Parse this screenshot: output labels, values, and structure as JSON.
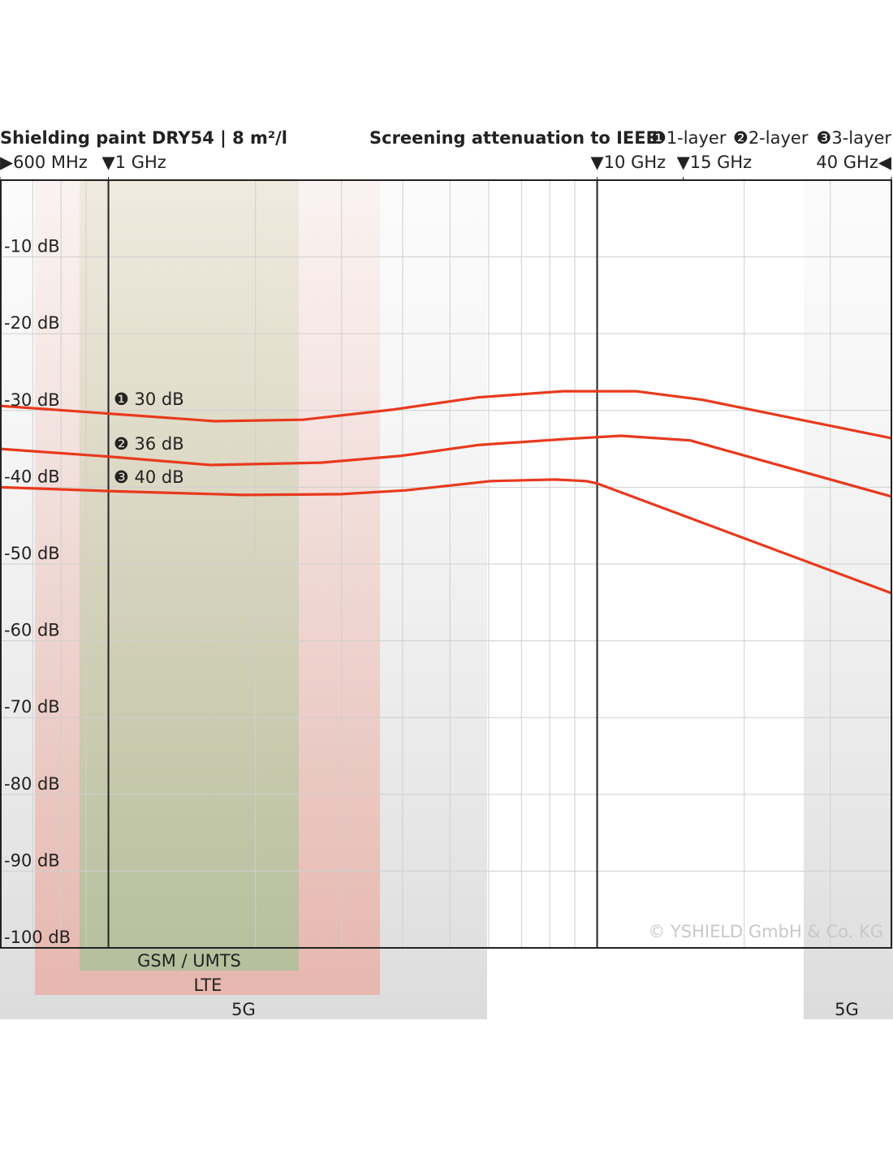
{
  "chart_data": {
    "type": "line",
    "title": "Shielding paint DRY54 | 8 m²/l",
    "subtitle": "Screening attenuation to IEEE",
    "log_x": true,
    "xlim": [
      0.6,
      40
    ],
    "xticks": [
      {
        "value": 0.6,
        "label": "▶600 MHz"
      },
      {
        "value": 1,
        "label": "▼1 GHz"
      },
      {
        "value": 10,
        "label": "▼10 GHz"
      },
      {
        "value": 15,
        "label": "▼15 GHz"
      },
      {
        "value": 40,
        "label": "40 GHz◀"
      }
    ],
    "xgrid": [
      0.7,
      0.8,
      0.9,
      1,
      2,
      3,
      4,
      5,
      6,
      7,
      8,
      9,
      10,
      20,
      30
    ],
    "ylim": [
      -100,
      0
    ],
    "yticks": [
      {
        "value": -10,
        "label": "-10 dB"
      },
      {
        "value": -20,
        "label": "-20 dB"
      },
      {
        "value": -30,
        "label": "-30 dB"
      },
      {
        "value": -40,
        "label": "-40 dB"
      },
      {
        "value": -50,
        "label": "-50 dB"
      },
      {
        "value": -60,
        "label": "-60 dB"
      },
      {
        "value": -70,
        "label": "-70 dB"
      },
      {
        "value": -80,
        "label": "-80 dB"
      },
      {
        "value": -90,
        "label": "-90 dB"
      },
      {
        "value": -100,
        "label": "-100 dB"
      }
    ],
    "grid": true,
    "series": [
      {
        "name": "❶1-layer",
        "color": "#e8391d",
        "x": [
          0.6,
          1,
          1.65,
          2.5,
          3.8,
          5.7,
          8.5,
          12,
          16.4,
          40
        ],
        "values": [
          -29.4,
          -30.4,
          -31.4,
          -31.2,
          -29.9,
          -28.3,
          -27.5,
          -27.5,
          -28.6,
          -33.6
        ]
      },
      {
        "name": "❷2-layer",
        "color": "#e8391d",
        "x": [
          0.6,
          1,
          1.62,
          2.72,
          3.98,
          5.7,
          8.7,
          11.2,
          15.5,
          40
        ],
        "values": [
          -35,
          -36,
          -37.1,
          -36.8,
          -35.9,
          -34.5,
          -33.7,
          -33.3,
          -33.9,
          -41.2
        ]
      },
      {
        "name": "❸3-layer",
        "color": "#e8391d",
        "x": [
          0.6,
          1,
          1.89,
          3,
          4.06,
          6.06,
          8.2,
          9.5,
          10,
          40
        ],
        "values": [
          -40,
          -40.5,
          -41,
          -40.9,
          -40.4,
          -39.2,
          -39,
          -39.2,
          -39.5,
          -53.8
        ]
      }
    ],
    "annotations": [
      "❶ 30 dB",
      "❷ 36 dB",
      "❸ 40 dB"
    ],
    "band_labels": [
      "GSM / UMTS",
      "LTE",
      "5G",
      "5G"
    ],
    "copyright": "© YSHIELD GmbH & Co. KG"
  }
}
